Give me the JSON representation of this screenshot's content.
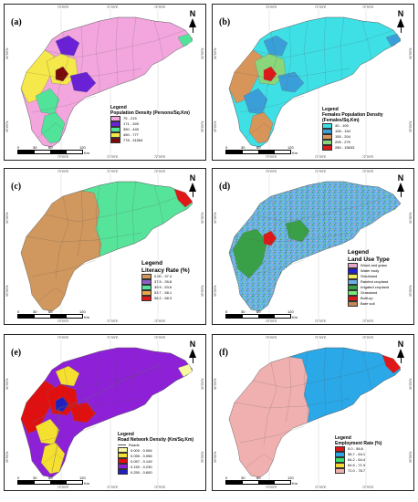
{
  "panels": [
    {
      "id": "a",
      "letter": "(a)",
      "legend_title": "Legend",
      "legend_subtitle": "Population Density (Persons/Sq.Km)",
      "subtitle_big": false,
      "classes": [
        {
          "label": "75 - 215",
          "color": "#f2a6dd"
        },
        {
          "label": "171 - 349",
          "color": "#6a20d6"
        },
        {
          "label": "350 - 449",
          "color": "#52e39a"
        },
        {
          "label": "450 - 777",
          "color": "#f5e84a"
        },
        {
          "label": "778 - 31554",
          "color": "#7a0a0a"
        }
      ],
      "base_color": "#f2a6dd",
      "regions": [
        {
          "shape": "west",
          "color": "#f5e84a"
        },
        {
          "shape": "center",
          "color": "#f5e84a"
        },
        {
          "shape": "blob1",
          "color": "#6a20d6"
        },
        {
          "shape": "blob2",
          "color": "#52e39a"
        },
        {
          "shape": "blob3",
          "color": "#6a20d6"
        },
        {
          "shape": "core",
          "color": "#7a0a0a"
        },
        {
          "shape": "south",
          "color": "#52e39a"
        },
        {
          "shape": "east_tip",
          "color": "#52e39a"
        }
      ]
    },
    {
      "id": "b",
      "letter": "(b)",
      "legend_title": "Legend",
      "legend_subtitle": "Females Population Density (Females/Sq.Km)",
      "subtitle_big": false,
      "classes": [
        {
          "label": "40 - 105",
          "color": "#3ee0e6"
        },
        {
          "label": "106 - 154",
          "color": "#3a9fd8"
        },
        {
          "label": "155 - 204",
          "color": "#d8955a"
        },
        {
          "label": "205 - 279",
          "color": "#8ad67a"
        },
        {
          "label": "280 - 15633",
          "color": "#e01818"
        }
      ],
      "base_color": "#3ee0e6",
      "regions": [
        {
          "shape": "west",
          "color": "#d8955a"
        },
        {
          "shape": "center",
          "color": "#8ad67a"
        },
        {
          "shape": "blob1",
          "color": "#3a9fd8"
        },
        {
          "shape": "blob2",
          "color": "#3a9fd8"
        },
        {
          "shape": "blob3",
          "color": "#3a9fd8"
        },
        {
          "shape": "core",
          "color": "#e01818"
        },
        {
          "shape": "south",
          "color": "#d8955a"
        },
        {
          "shape": "east_tip",
          "color": "#3a9fd8"
        }
      ]
    },
    {
      "id": "c",
      "letter": "(c)",
      "legend_title": "Legend",
      "legend_subtitle": "Literacy Rate (%)",
      "subtitle_big": true,
      "classes": [
        {
          "label": "0.00 - 37.4",
          "color": "#d0975e"
        },
        {
          "label": "37.5 - 39.8",
          "color": "#8e5fc8"
        },
        {
          "label": "39.9 - 53.6",
          "color": "#56e39a"
        },
        {
          "label": "53.7 - 58.1",
          "color": "#e8a848"
        },
        {
          "label": "58.2 - 58.3",
          "color": "#e01818"
        }
      ],
      "base_color": "#56e39a",
      "regions": [
        {
          "shape": "westhalf",
          "color": "#d0975e"
        },
        {
          "shape": "east_red",
          "color": "#e01818"
        }
      ]
    },
    {
      "id": "d",
      "letter": "(d)",
      "legend_title": "Legend",
      "legend_subtitle": "Land Use Type",
      "subtitle_big": true,
      "classes": [
        {
          "label": "Wood and grass",
          "color": "#e6a6c8"
        },
        {
          "label": "Water body",
          "color": "#2020d8"
        },
        {
          "label": "Shrubland",
          "color": "#f0e860"
        },
        {
          "label": "Rainfed cropland",
          "color": "#6ab0e8"
        },
        {
          "label": "Irrigated cropland",
          "color": "#3aa048"
        },
        {
          "label": "Grassland",
          "color": "#78e878"
        },
        {
          "label": "Built-up",
          "color": "#e01818"
        },
        {
          "label": "Bare soil",
          "color": "#c08858"
        }
      ],
      "base_color": "#6ab0e8",
      "regions": [
        {
          "shape": "green_west",
          "color": "#3aa048"
        },
        {
          "shape": "green_mid",
          "color": "#3aa048"
        },
        {
          "shape": "core",
          "color": "#e01818"
        }
      ]
    },
    {
      "id": "e",
      "letter": "(e)",
      "legend_title": "Legend",
      "legend_subtitle": "Road Network Density (Km/Sq.Km)",
      "subtitle_big": false,
      "roads_label": "Roads",
      "classes": [
        {
          "label": "0.000 - 0.054",
          "color": "#f8f8a0"
        },
        {
          "label": "0.055 - 0.056",
          "color": "#f5e030"
        },
        {
          "label": "0.057 - 0.149",
          "color": "#e01010"
        },
        {
          "label": "0.150 - 0.230",
          "color": "#8e20d8"
        },
        {
          "label": "0.250 - 0.600",
          "color": "#2020c0"
        }
      ],
      "base_color": "#8e20d8",
      "regions": [
        {
          "shape": "west",
          "color": "#e01010"
        },
        {
          "shape": "center",
          "color": "#e01010"
        },
        {
          "shape": "blob1",
          "color": "#f5e030"
        },
        {
          "shape": "blob2",
          "color": "#f5e030"
        },
        {
          "shape": "south",
          "color": "#f5e030"
        },
        {
          "shape": "blob3",
          "color": "#e01010"
        },
        {
          "shape": "core",
          "color": "#2020c0"
        },
        {
          "shape": "east_tip",
          "color": "#f8f8a0"
        }
      ]
    },
    {
      "id": "f",
      "letter": "(f)",
      "legend_title": "Legend",
      "legend_subtitle": "Employment Rate (%)",
      "subtitle_big": false,
      "classes": [
        {
          "label": "0.0 - 58.6",
          "color": "#e01818"
        },
        {
          "label": "58.7 - 64.1",
          "color": "#2aa8e8"
        },
        {
          "label": "64.2 - 64.4",
          "color": "#3ae06a"
        },
        {
          "label": "64.5 - 71.9",
          "color": "#f5d830"
        },
        {
          "label": "72.0 - 78.7",
          "color": "#f0b0b0"
        }
      ],
      "base_color": "#2aa8e8",
      "regions": [
        {
          "shape": "westhalf",
          "color": "#f0b0b0"
        },
        {
          "shape": "east_red",
          "color": "#e01818"
        }
      ]
    }
  ],
  "scale": {
    "labels": [
      "0",
      "30",
      "60",
      "120"
    ],
    "unit": "Km"
  },
  "north_label": "N",
  "graticule": {
    "top": [
      "70°0'0\"E",
      "71°0'0\"E",
      "72°0'0\"E"
    ],
    "bottom": [
      "70°0'0\"E",
      "71°0'0\"E",
      "72°0'0\"E"
    ],
    "left": [
      "34°0'0\"N",
      "33°0'0\"N"
    ],
    "right": [
      "34°0'0\"N",
      "33°0'0\"N"
    ]
  }
}
